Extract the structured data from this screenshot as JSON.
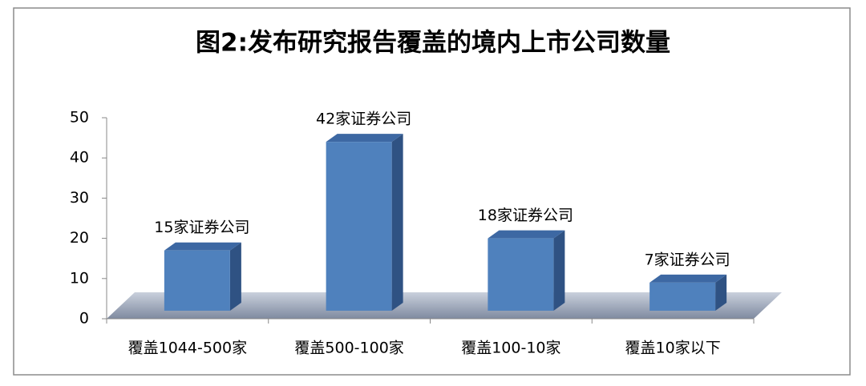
{
  "chart_data": {
    "type": "bar",
    "title": "图2:发布研究报告覆盖的境内上市公司数量",
    "categories": [
      "覆盖1044-500家",
      "覆盖500-100家",
      "覆盖100-10家",
      "覆盖10家以下"
    ],
    "values": [
      15,
      42,
      18,
      7
    ],
    "value_labels": [
      "15家证券公司",
      "42家证券公司",
      "18家证券公司",
      "7家证券公司"
    ],
    "color": "#4f81bd",
    "ylim": [
      0,
      50
    ],
    "yticks": [
      0,
      10,
      20,
      30,
      40,
      50
    ],
    "grid": false
  }
}
